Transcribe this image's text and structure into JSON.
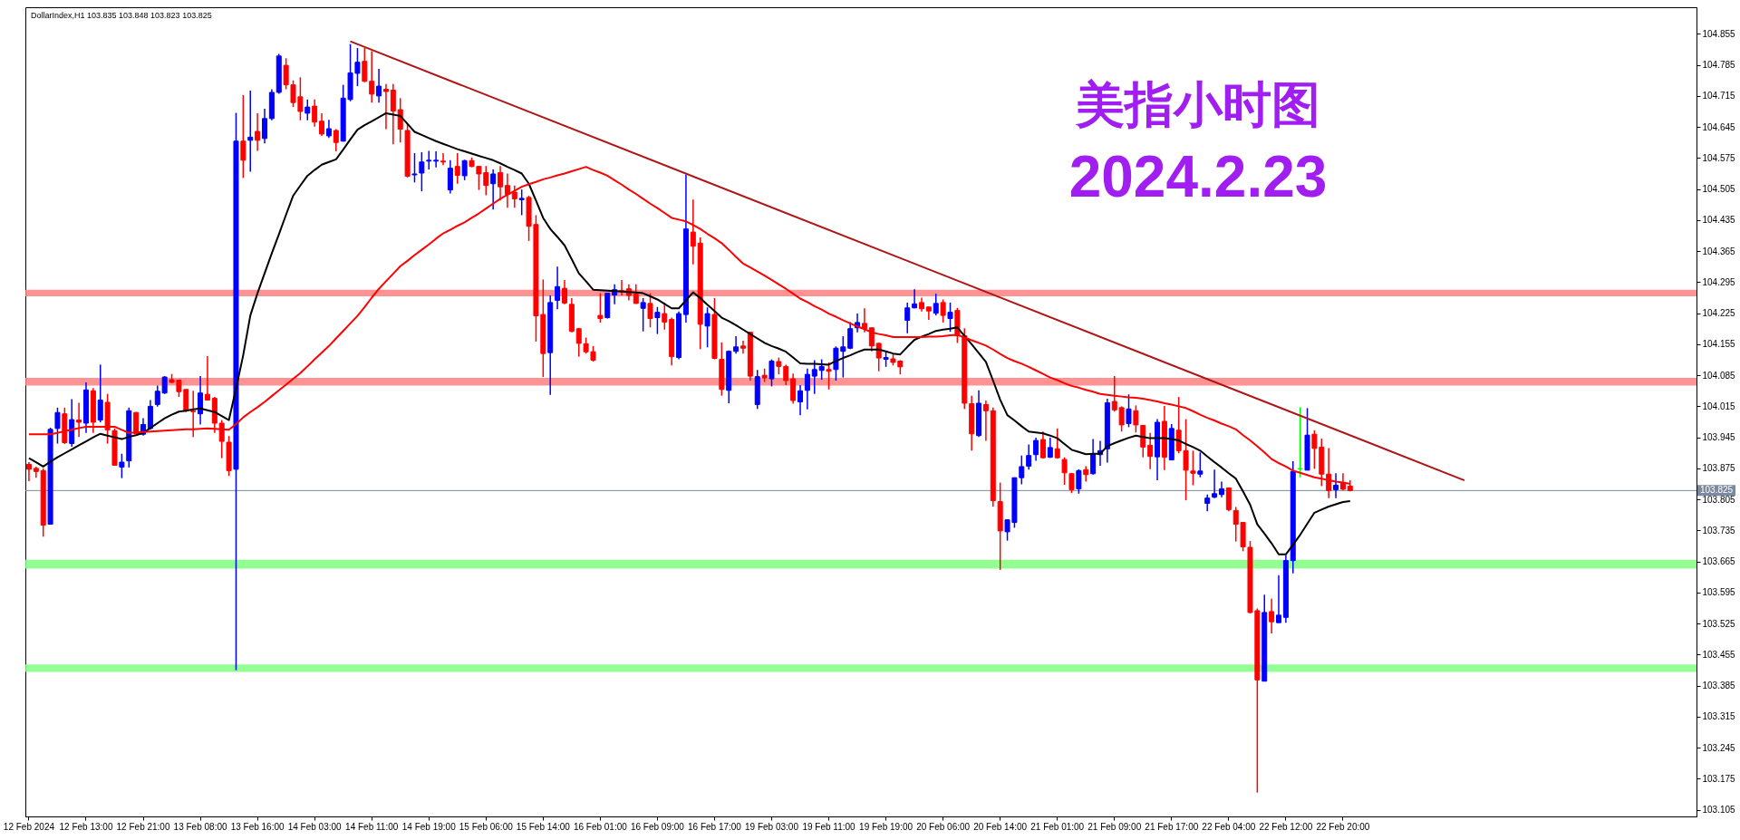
{
  "chart_data": {
    "type": "candlestick",
    "title": "美指小时图",
    "subtitle": "2024.2.23",
    "annotations": [
      "DollarIndex,H1  103.835 103.848 103.823 103.825"
    ],
    "categories": [
      "12 Feb 2024",
      null,
      null,
      null,
      null,
      null,
      null,
      null,
      "12 Feb 13:00",
      null,
      null,
      null,
      null,
      null,
      null,
      null,
      "12 Feb 21:00",
      null,
      null,
      null,
      null,
      null,
      null,
      null,
      "13 Feb 08:00",
      null,
      null,
      null,
      null,
      null,
      null,
      null,
      "13 Feb 16:00",
      null,
      null,
      null,
      null,
      null,
      null,
      null,
      "14 Feb 03:00",
      null,
      null,
      null,
      null,
      null,
      null,
      null,
      "14 Feb 11:00",
      null,
      null,
      null,
      null,
      null,
      null,
      null,
      "14 Feb 19:00",
      null,
      null,
      null,
      null,
      null,
      null,
      null,
      "15 Feb 06:00",
      null,
      null,
      null,
      null,
      null,
      null,
      null,
      "15 Feb 14:00",
      null,
      null,
      null,
      null,
      null,
      null,
      null,
      "16 Feb 01:00",
      null,
      null,
      null,
      null,
      null,
      null,
      null,
      "16 Feb 09:00",
      null,
      null,
      null,
      null,
      null,
      null,
      null,
      "16 Feb 17:00",
      null,
      null,
      null,
      null,
      null,
      null,
      null,
      "19 Feb 03:00",
      null,
      null,
      null,
      null,
      null,
      null,
      null,
      "19 Feb 11:00",
      null,
      null,
      null,
      null,
      null,
      null,
      null,
      "19 Feb 19:00",
      null,
      null,
      null,
      null,
      null,
      null,
      null,
      "20 Feb 06:00",
      null,
      null,
      null,
      null,
      null,
      null,
      null,
      "20 Feb 14:00",
      null,
      null,
      null,
      null,
      null,
      null,
      null,
      "21 Feb 01:00",
      null,
      null,
      null,
      null,
      null,
      null,
      null,
      "21 Feb 09:00",
      null,
      null,
      null,
      null,
      null,
      null,
      null,
      "21 Feb 17:00",
      null,
      null,
      null,
      null,
      null,
      null,
      null,
      "22 Feb 04:00",
      null,
      null,
      null,
      null,
      null,
      null,
      null,
      "22 Feb 12:00",
      null,
      null,
      null,
      null,
      null,
      null,
      null,
      "22 Feb 20:00",
      null,
      null,
      null,
      null,
      null,
      null,
      null,
      null,
      null,
      null,
      null,
      null,
      null,
      null,
      null,
      null,
      null,
      null,
      null,
      null,
      null,
      null,
      null,
      null,
      null,
      null,
      null,
      null,
      null,
      null,
      null,
      null,
      null,
      null,
      null,
      null,
      null,
      null,
      null,
      null,
      null,
      null,
      null,
      null,
      null,
      null,
      null,
      null,
      null
    ],
    "ohlc": [
      [
        103.884,
        103.889,
        103.846,
        103.873
      ],
      [
        103.875,
        103.879,
        103.854,
        103.868
      ],
      [
        103.87,
        103.875,
        103.721,
        103.747
      ],
      [
        103.749,
        103.967,
        103.749,
        103.963
      ],
      [
        103.965,
        104.012,
        103.931,
        104.001
      ],
      [
        103.998,
        104.012,
        103.93,
        103.933
      ],
      [
        103.931,
        104.031,
        103.924,
        103.985
      ],
      [
        103.984,
        104.023,
        103.946,
        103.979
      ],
      [
        103.977,
        104.069,
        103.955,
        104.052
      ],
      [
        104.05,
        104.056,
        103.955,
        103.979
      ],
      [
        103.984,
        104.109,
        103.979,
        104.029
      ],
      [
        104.024,
        104.043,
        103.931,
        103.962
      ],
      [
        103.96,
        103.965,
        103.882,
        103.882
      ],
      [
        103.878,
        103.908,
        103.853,
        103.889
      ],
      [
        103.892,
        104.012,
        103.877,
        104.005
      ],
      [
        104.001,
        104.002,
        103.952,
        103.953
      ],
      [
        103.952,
        103.988,
        103.949,
        103.974
      ],
      [
        103.965,
        104.029,
        103.962,
        104.015
      ],
      [
        104.019,
        104.062,
        104.014,
        104.049
      ],
      [
        104.045,
        104.083,
        104.043,
        104.081
      ],
      [
        104.075,
        104.088,
        104.067,
        104.069
      ],
      [
        104.074,
        104.074,
        104.036,
        104.048
      ],
      [
        104.053,
        104.053,
        104.002,
        104.005
      ],
      [
        104.005,
        104.05,
        103.946,
        104.003
      ],
      [
        103.998,
        104.083,
        103.974,
        104.045
      ],
      [
        104.042,
        104.128,
        104.028,
        104.029
      ],
      [
        104.033,
        104.036,
        103.955,
        103.977
      ],
      [
        103.977,
        103.984,
        103.898,
        103.936
      ],
      [
        103.934,
        103.948,
        103.858,
        103.87
      ],
      [
        103.873,
        104.677,
        103.42,
        104.613
      ],
      [
        104.613,
        104.717,
        104.53,
        104.57
      ],
      [
        104.615,
        104.727,
        104.544,
        104.622
      ],
      [
        104.635,
        104.676,
        104.591,
        104.615
      ],
      [
        104.619,
        104.686,
        104.608,
        104.664
      ],
      [
        104.664,
        104.73,
        104.66,
        104.723
      ],
      [
        104.723,
        104.81,
        104.72,
        104.805
      ],
      [
        104.784,
        104.8,
        104.73,
        104.74
      ],
      [
        104.74,
        104.75,
        104.69,
        104.7
      ],
      [
        104.713,
        104.757,
        104.66,
        104.68
      ],
      [
        104.676,
        104.707,
        104.66,
        104.69
      ],
      [
        104.692,
        104.707,
        104.646,
        104.656
      ],
      [
        104.658,
        104.676,
        104.625,
        104.629
      ],
      [
        104.625,
        104.661,
        104.62,
        104.641
      ],
      [
        104.637,
        104.64,
        104.59,
        104.61
      ],
      [
        104.613,
        104.74,
        104.612,
        104.71
      ],
      [
        104.707,
        104.832,
        104.703,
        104.767
      ],
      [
        104.766,
        104.823,
        104.737,
        104.791
      ],
      [
        104.793,
        104.823,
        104.746,
        104.748
      ],
      [
        104.748,
        104.816,
        104.7,
        104.719
      ],
      [
        104.715,
        104.776,
        104.7,
        104.737
      ],
      [
        104.73,
        104.742,
        104.64,
        104.725
      ],
      [
        104.728,
        104.742,
        104.606,
        104.681
      ],
      [
        104.684,
        104.71,
        104.61,
        104.64
      ],
      [
        104.637,
        104.652,
        104.531,
        104.534
      ],
      [
        104.537,
        104.586,
        104.52,
        104.539
      ],
      [
        104.541,
        104.588,
        104.5,
        104.566
      ],
      [
        104.568,
        104.591,
        104.549,
        104.57
      ],
      [
        104.568,
        104.59,
        104.554,
        104.57
      ],
      [
        104.568,
        104.586,
        104.559,
        104.566
      ],
      [
        104.503,
        104.57,
        104.495,
        104.552
      ],
      [
        104.556,
        104.586,
        104.517,
        104.536
      ],
      [
        104.535,
        104.571,
        104.525,
        104.569
      ],
      [
        104.569,
        104.576,
        104.554,
        104.556
      ],
      [
        104.556,
        104.557,
        104.503,
        104.539
      ],
      [
        104.542,
        104.557,
        104.491,
        104.513
      ],
      [
        104.517,
        104.549,
        104.459,
        104.539
      ],
      [
        104.542,
        104.557,
        104.479,
        104.51
      ],
      [
        104.513,
        104.54,
        104.463,
        104.493
      ],
      [
        104.498,
        104.513,
        104.463,
        104.483
      ],
      [
        104.481,
        104.504,
        104.446,
        104.484
      ],
      [
        104.486,
        104.49,
        104.388,
        104.421
      ],
      [
        104.425,
        104.446,
        104.161,
        104.219
      ],
      [
        104.222,
        104.301,
        104.081,
        104.134
      ],
      [
        104.136,
        104.265,
        104.041,
        104.249
      ],
      [
        104.254,
        104.33,
        104.234,
        104.285
      ],
      [
        104.281,
        104.3,
        104.245,
        104.248
      ],
      [
        104.245,
        104.259,
        104.182,
        104.184
      ],
      [
        104.19,
        104.192,
        104.127,
        104.157
      ],
      [
        104.156,
        104.17,
        104.134,
        104.138
      ],
      [
        104.138,
        104.151,
        104.116,
        104.119
      ],
      [
        104.22,
        104.27,
        104.204,
        104.213
      ],
      [
        104.215,
        104.27,
        104.213,
        104.27
      ],
      [
        104.266,
        104.29,
        104.245,
        104.278
      ],
      [
        104.276,
        104.3,
        104.265,
        104.274
      ],
      [
        104.28,
        104.29,
        104.254,
        104.265
      ],
      [
        104.268,
        104.29,
        104.246,
        104.247
      ],
      [
        104.236,
        104.259,
        104.184,
        104.249
      ],
      [
        104.247,
        104.27,
        104.193,
        104.213
      ],
      [
        104.215,
        104.239,
        104.178,
        104.227
      ],
      [
        104.224,
        104.249,
        104.188,
        104.205
      ],
      [
        104.211,
        104.215,
        104.107,
        104.127
      ],
      [
        104.125,
        104.229,
        104.121,
        104.224
      ],
      [
        104.222,
        104.538,
        104.204,
        104.415
      ],
      [
        104.408,
        104.481,
        104.335,
        104.376
      ],
      [
        104.383,
        104.396,
        104.144,
        104.2
      ],
      [
        104.196,
        104.238,
        104.148,
        104.224
      ],
      [
        104.222,
        104.259,
        104.121,
        104.123
      ],
      [
        104.121,
        104.159,
        104.039,
        104.053
      ],
      [
        104.051,
        104.141,
        104.022,
        104.139
      ],
      [
        104.139,
        104.173,
        104.134,
        104.149
      ],
      [
        104.151,
        104.163,
        104.134,
        104.146
      ],
      [
        104.182,
        104.182,
        104.073,
        104.083
      ],
      [
        104.019,
        104.097,
        104.009,
        104.082
      ],
      [
        104.085,
        104.1,
        104.07,
        104.079
      ],
      [
        104.077,
        104.121,
        104.06,
        104.117
      ],
      [
        104.116,
        104.125,
        104.087,
        104.105
      ],
      [
        104.105,
        104.109,
        104.063,
        104.073
      ],
      [
        104.077,
        104.089,
        104.021,
        104.028
      ],
      [
        104.025,
        104.063,
        103.995,
        104.05
      ],
      [
        104.051,
        104.1,
        104.008,
        104.087
      ],
      [
        104.083,
        104.119,
        104.043,
        104.098
      ],
      [
        104.096,
        104.121,
        104.075,
        104.105
      ],
      [
        104.098,
        104.114,
        104.053,
        104.094
      ],
      [
        104.098,
        104.15,
        104.073,
        104.146
      ],
      [
        104.139,
        104.173,
        104.08,
        104.149
      ],
      [
        104.146,
        104.205,
        104.144,
        104.19
      ],
      [
        104.192,
        104.224,
        104.182,
        104.204
      ],
      [
        104.202,
        104.236,
        104.182,
        104.19
      ],
      [
        104.192,
        104.193,
        104.139,
        104.151
      ],
      [
        104.157,
        104.158,
        104.094,
        104.124
      ],
      [
        104.121,
        104.138,
        104.104,
        104.125
      ],
      [
        104.122,
        104.132,
        104.107,
        104.114
      ],
      [
        104.117,
        104.119,
        104.087,
        104.104
      ],
      [
        104.209,
        104.249,
        104.18,
        104.237
      ],
      [
        104.237,
        104.279,
        104.236,
        104.246
      ],
      [
        104.249,
        104.26,
        104.229,
        104.235
      ],
      [
        104.239,
        104.239,
        104.21,
        104.23
      ],
      [
        104.225,
        104.269,
        104.22,
        104.247
      ],
      [
        104.249,
        104.256,
        104.204,
        104.22
      ],
      [
        104.213,
        104.249,
        104.183,
        104.227
      ],
      [
        104.231,
        104.237,
        104.158,
        104.174
      ],
      [
        104.174,
        104.191,
        104.009,
        104.022
      ],
      [
        104.021,
        104.039,
        103.915,
        103.953
      ],
      [
        103.949,
        104.051,
        103.946,
        104.022
      ],
      [
        104.019,
        104.028,
        103.937,
        104.005
      ],
      [
        104.005,
        104.012,
        103.789,
        103.802
      ],
      [
        103.8,
        103.843,
        103.646,
        103.734
      ],
      [
        103.732,
        103.759,
        103.712,
        103.759
      ],
      [
        103.753,
        103.854,
        103.741,
        103.854
      ],
      [
        103.854,
        103.904,
        103.839,
        103.879
      ],
      [
        103.88,
        103.929,
        103.872,
        103.904
      ],
      [
        103.906,
        103.944,
        103.892,
        103.938
      ],
      [
        103.94,
        103.958,
        103.897,
        103.899
      ],
      [
        103.9,
        103.944,
        103.899,
        103.922
      ],
      [
        103.919,
        103.965,
        103.897,
        103.899
      ],
      [
        103.895,
        103.9,
        103.838,
        103.865
      ],
      [
        103.863,
        103.865,
        103.819,
        103.827
      ],
      [
        103.829,
        103.873,
        103.818,
        103.87
      ],
      [
        103.872,
        103.88,
        103.845,
        103.861
      ],
      [
        103.863,
        103.941,
        103.861,
        103.908
      ],
      [
        103.906,
        103.937,
        103.881,
        103.915
      ],
      [
        103.919,
        104.032,
        103.888,
        104.023
      ],
      [
        104.026,
        104.083,
        104.003,
        104.007
      ],
      [
        104.012,
        104.015,
        103.958,
        103.973
      ],
      [
        103.976,
        104.042,
        103.968,
        104.009
      ],
      [
        104.005,
        104.017,
        103.956,
        103.973
      ],
      [
        103.972,
        103.972,
        103.9,
        103.923
      ],
      [
        103.927,
        103.955,
        103.873,
        103.902
      ],
      [
        103.901,
        103.986,
        103.848,
        103.979
      ],
      [
        103.981,
        104.016,
        103.871,
        103.9
      ],
      [
        103.894,
        103.975,
        103.893,
        103.965
      ],
      [
        103.961,
        104.036,
        103.909,
        103.915
      ],
      [
        103.915,
        103.986,
        103.803,
        103.871
      ],
      [
        103.869,
        103.915,
        103.837,
        103.864
      ],
      [
        103.862,
        103.911,
        103.855,
        103.869
      ],
      [
        103.796,
        103.816,
        103.778,
        103.808
      ],
      [
        103.81,
        103.872,
        103.808,
        103.818
      ],
      [
        103.816,
        103.845,
        103.81,
        103.829
      ],
      [
        103.831,
        103.832,
        103.778,
        103.782
      ],
      [
        103.78,
        103.788,
        103.71,
        103.749
      ],
      [
        103.753,
        103.753,
        103.688,
        103.698
      ],
      [
        103.697,
        103.711,
        103.548,
        103.55
      ],
      [
        103.554,
        103.559,
        103.144,
        103.398
      ],
      [
        103.395,
        103.59,
        103.395,
        103.55
      ],
      [
        103.552,
        103.581,
        103.503,
        103.529
      ],
      [
        103.527,
        103.634,
        103.527,
        103.544
      ],
      [
        103.539,
        103.679,
        103.527,
        103.667
      ],
      [
        103.667,
        103.891,
        103.638,
        103.868
      ],
      [
        103.874,
        104.013,
        103.855,
        103.874
      ],
      [
        103.871,
        104.011,
        103.871,
        103.95
      ],
      [
        103.952,
        103.961,
        103.874,
        103.92
      ],
      [
        103.923,
        103.942,
        103.835,
        103.862
      ],
      [
        103.862,
        103.921,
        103.808,
        103.825
      ],
      [
        103.827,
        103.864,
        103.808,
        103.837
      ],
      [
        103.841,
        103.864,
        103.825,
        103.828
      ],
      [
        103.835,
        103.848,
        103.823,
        103.825
      ],
      null,
      null,
      null,
      null,
      null,
      null,
      null,
      null,
      null,
      null,
      null,
      null,
      null,
      null,
      null,
      null,
      null,
      null,
      null,
      null,
      null,
      null,
      null,
      null,
      null,
      null,
      null,
      null,
      null,
      null,
      null,
      null,
      null,
      null,
      null,
      null,
      null,
      null,
      null,
      null,
      null,
      null,
      null,
      null,
      null,
      null,
      null,
      null
    ],
    "colors": [
      "#ff0000",
      "#ff0000",
      "#ff0000",
      "#0000ff",
      "#0000ff",
      "#ff0000",
      "#0000ff",
      "#ff0000",
      "#0000ff",
      "#ff0000",
      "#0000ff",
      "#ff0000",
      "#ff0000",
      "#0000ff",
      "#0000ff",
      "#ff0000",
      "#0000ff",
      "#0000ff",
      "#0000ff",
      "#0000ff",
      "#ff0000",
      "#ff0000",
      "#ff0000",
      "#ff0000",
      "#0000ff",
      "#ff0000",
      "#ff0000",
      "#ff0000",
      "#ff0000",
      "#0000ff",
      "#ff0000",
      "#0000ff",
      "#ff0000",
      "#0000ff",
      "#0000ff",
      "#0000ff",
      "#ff0000",
      "#ff0000",
      "#ff0000",
      "#0000ff",
      "#ff0000",
      "#ff0000",
      "#0000ff",
      "#ff0000",
      "#0000ff",
      "#0000ff",
      "#0000ff",
      "#ff0000",
      "#ff0000",
      "#0000ff",
      "#ff0000",
      "#ff0000",
      "#ff0000",
      "#ff0000",
      "#0000ff",
      "#0000ff",
      "#0000ff",
      "#0000ff",
      "#ff0000",
      "#0000ff",
      "#ff0000",
      "#0000ff",
      "#ff0000",
      "#ff0000",
      "#ff0000",
      "#0000ff",
      "#ff0000",
      "#ff0000",
      "#ff0000",
      "#0000ff",
      "#ff0000",
      "#ff0000",
      "#ff0000",
      "#0000ff",
      "#0000ff",
      "#ff0000",
      "#ff0000",
      "#ff0000",
      "#ff0000",
      "#ff0000",
      "#ff0000",
      "#0000ff",
      "#0000ff",
      "#ff0000",
      "#ff0000",
      "#ff0000",
      "#0000ff",
      "#ff0000",
      "#0000ff",
      "#ff0000",
      "#ff0000",
      "#0000ff",
      "#0000ff",
      "#ff0000",
      "#ff0000",
      "#0000ff",
      "#ff0000",
      "#ff0000",
      "#0000ff",
      "#0000ff",
      "#ff0000",
      "#ff0000",
      "#0000ff",
      "#ff0000",
      "#0000ff",
      "#ff0000",
      "#ff0000",
      "#ff0000",
      "#0000ff",
      "#0000ff",
      "#0000ff",
      "#0000ff",
      "#ff0000",
      "#0000ff",
      "#0000ff",
      "#0000ff",
      "#0000ff",
      "#ff0000",
      "#ff0000",
      "#ff0000",
      "#0000ff",
      "#ff0000",
      "#ff0000",
      "#0000ff",
      "#0000ff",
      "#ff0000",
      "#ff0000",
      "#0000ff",
      "#ff0000",
      "#0000ff",
      "#ff0000",
      "#ff0000",
      "#ff0000",
      "#0000ff",
      "#ff0000",
      "#ff0000",
      "#ff0000",
      "#0000ff",
      "#0000ff",
      "#0000ff",
      "#0000ff",
      "#0000ff",
      "#ff0000",
      "#0000ff",
      "#ff0000",
      "#ff0000",
      "#ff0000",
      "#0000ff",
      "#ff0000",
      "#0000ff",
      "#0000ff",
      "#0000ff",
      "#ff0000",
      "#ff0000",
      "#0000ff",
      "#ff0000",
      "#ff0000",
      "#ff0000",
      "#0000ff",
      "#ff0000",
      "#0000ff",
      "#ff0000",
      "#ff0000",
      "#ff0000",
      "#0000ff",
      "#0000ff",
      "#0000ff",
      "#0000ff",
      "#ff0000",
      "#ff0000",
      "#ff0000",
      "#ff0000",
      "#ff0000",
      "#0000ff",
      "#ff0000",
      "#0000ff",
      "#0000ff",
      "#0000ff",
      "#00ff00",
      "#0000ff",
      "#ff0000",
      "#ff0000",
      "#ff0000",
      "#0000ff",
      "#ff0000",
      "#ff0000",
      null,
      null,
      null,
      null,
      null,
      null,
      null,
      null,
      null,
      null,
      null,
      null,
      null,
      null,
      null,
      null,
      null,
      null,
      null,
      null,
      null,
      null,
      null,
      null,
      null,
      null,
      null,
      null,
      null,
      null,
      null,
      null,
      null,
      null,
      null,
      null,
      null,
      null,
      null,
      null,
      null,
      null,
      null,
      null,
      null,
      null,
      null,
      null
    ],
    "series": [
      {
        "type": "line",
        "color": "#000000",
        "values": [
          103.898,
          103.889,
          103.879,
          103.89,
          103.9,
          103.909,
          103.918,
          103.927,
          103.936,
          103.945,
          103.953,
          103.949,
          103.945,
          103.941,
          103.946,
          103.95,
          103.955,
          103.966,
          103.977,
          103.988,
          103.996,
          104.003,
          104.005,
          104.008,
          104.01,
          104.006,
          104.002,
          103.993,
          103.984,
          104.055,
          104.13,
          104.22,
          104.27,
          104.315,
          104.36,
          104.403,
          104.447,
          104.49,
          104.513,
          104.535,
          104.548,
          104.56,
          104.566,
          104.572,
          104.594,
          104.617,
          104.639,
          104.649,
          104.658,
          104.667,
          104.676,
          104.673,
          104.67,
          104.652,
          104.634,
          104.627,
          104.62,
          104.613,
          104.607,
          104.601,
          104.595,
          104.59,
          104.585,
          104.58,
          104.575,
          104.57,
          104.563,
          104.555,
          104.548,
          104.54,
          104.517,
          104.479,
          104.44,
          104.415,
          104.397,
          104.378,
          104.347,
          104.315,
          104.297,
          104.278,
          104.277,
          104.276,
          104.275,
          104.274,
          104.273,
          104.272,
          104.27,
          104.263,
          104.256,
          104.246,
          104.236,
          104.236,
          104.254,
          104.272,
          104.259,
          104.244,
          104.23,
          104.215,
          104.207,
          104.198,
          104.188,
          104.178,
          104.168,
          104.158,
          104.151,
          104.145,
          104.138,
          104.125,
          104.112,
          104.111,
          104.111,
          104.11,
          104.109,
          104.117,
          104.124,
          104.13,
          104.137,
          104.143,
          104.143,
          104.143,
          104.139,
          104.134,
          104.132,
          104.149,
          104.165,
          104.172,
          104.178,
          104.185,
          104.188,
          104.19,
          104.193,
          104.174,
          104.155,
          104.135,
          104.115,
          104.073,
          104.03,
          103.995,
          103.983,
          103.97,
          103.958,
          103.956,
          103.954,
          103.949,
          103.943,
          103.93,
          103.917,
          103.912,
          103.907,
          103.908,
          103.908,
          103.925,
          103.932,
          103.938,
          103.944,
          103.949,
          103.946,
          103.943,
          103.943,
          103.943,
          103.941,
          103.938,
          103.93,
          103.923,
          103.915,
          103.902,
          103.889,
          103.877,
          103.864,
          103.852,
          103.823,
          103.793,
          103.749,
          103.728,
          103.706,
          103.681,
          103.681,
          103.703,
          103.725,
          103.75,
          103.775,
          103.782,
          103.789,
          103.794,
          103.799,
          103.801,
          null,
          null,
          null,
          null,
          null,
          null,
          null,
          null,
          null,
          null,
          null,
          null,
          null,
          null,
          null,
          null,
          null,
          null,
          null,
          null,
          null,
          null,
          null,
          null,
          null,
          null,
          null,
          null,
          null,
          null,
          null,
          null,
          null,
          null,
          null,
          null,
          null,
          null,
          null,
          null,
          null,
          null,
          null,
          null,
          null,
          null,
          null,
          null
        ]
      },
      {
        "type": "line",
        "color": "#ff0000",
        "values": [
          103.952,
          103.952,
          103.952,
          103.952,
          103.955,
          103.959,
          103.962,
          103.966,
          103.969,
          103.969,
          103.969,
          103.969,
          103.969,
          103.962,
          103.955,
          103.956,
          103.957,
          103.958,
          103.959,
          103.96,
          103.961,
          103.962,
          103.963,
          103.963,
          103.964,
          103.965,
          103.964,
          103.963,
          103.962,
          103.975,
          103.99,
          104.002,
          104.013,
          104.025,
          104.038,
          104.051,
          104.064,
          104.077,
          104.09,
          104.105,
          104.121,
          104.136,
          104.151,
          104.168,
          104.185,
          104.202,
          104.219,
          104.239,
          104.26,
          104.28,
          104.297,
          104.314,
          104.331,
          104.343,
          104.356,
          104.368,
          104.38,
          104.393,
          104.405,
          104.413,
          104.422,
          104.43,
          104.44,
          104.45,
          104.461,
          104.472,
          104.483,
          104.492,
          104.501,
          104.51,
          104.516,
          104.521,
          104.527,
          104.531,
          104.536,
          104.54,
          104.545,
          104.55,
          104.555,
          104.548,
          104.542,
          104.535,
          104.525,
          104.515,
          104.504,
          104.494,
          104.483,
          104.472,
          104.462,
          104.451,
          104.44,
          104.436,
          104.432,
          104.424,
          104.415,
          104.404,
          104.394,
          104.383,
          104.368,
          104.352,
          104.337,
          104.328,
          104.319,
          104.31,
          104.3,
          104.29,
          104.28,
          104.269,
          104.258,
          104.25,
          104.241,
          104.233,
          104.224,
          104.217,
          104.209,
          104.202,
          104.195,
          104.189,
          104.182,
          104.178,
          104.175,
          104.171,
          104.171,
          104.171,
          104.171,
          104.171,
          104.172,
          104.172,
          104.173,
          104.175,
          104.176,
          104.17,
          104.164,
          104.158,
          104.152,
          104.143,
          104.133,
          104.124,
          104.117,
          104.111,
          104.104,
          104.096,
          104.088,
          104.08,
          104.074,
          104.067,
          104.061,
          104.057,
          104.052,
          104.048,
          104.043,
          104.041,
          104.039,
          104.037,
          104.035,
          104.034,
          104.032,
          104.029,
          104.026,
          104.022,
          104.019,
          104.015,
          104.011,
          104.004,
          103.996,
          103.989,
          103.983,
          103.976,
          103.97,
          103.963,
          103.95,
          103.938,
          103.925,
          103.911,
          103.896,
          103.887,
          103.879,
          103.87,
          103.865,
          103.86,
          103.855,
          103.852,
          103.848,
          103.845,
          103.843,
          103.84,
          null,
          null,
          null,
          null,
          null,
          null,
          null,
          null,
          null,
          null,
          null,
          null,
          null,
          null,
          null,
          null,
          null,
          null,
          null,
          null,
          null,
          null,
          null,
          null,
          null,
          null,
          null,
          null,
          null,
          null,
          null,
          null,
          null,
          null,
          null,
          null,
          null,
          null,
          null,
          null,
          null,
          null,
          null,
          null,
          null,
          null,
          null,
          null
        ]
      },
      {
        "type": "line",
        "color": "#b01515",
        "values": [
          null,
          null,
          null,
          null,
          null,
          null,
          null,
          null,
          null,
          null,
          null,
          null,
          null,
          null,
          null,
          null,
          null,
          null,
          null,
          null,
          null,
          null,
          null,
          null,
          null,
          null,
          null,
          null,
          null,
          null,
          null,
          null,
          null,
          null,
          null,
          null,
          null,
          null,
          null,
          null,
          null,
          null,
          null,
          null,
          null,
          104.838,
          null,
          null,
          null,
          null,
          null,
          null,
          null,
          null,
          null,
          null,
          null,
          null,
          null,
          null,
          null,
          null,
          null,
          null,
          null,
          null,
          null,
          null,
          null,
          null,
          null,
          null,
          null,
          null,
          null,
          null,
          null,
          null,
          null,
          null,
          null,
          null,
          null,
          null,
          null,
          null,
          null,
          null,
          null,
          null,
          null,
          null,
          null,
          null,
          null,
          null,
          null,
          null,
          null,
          null,
          null,
          null,
          null,
          null,
          null,
          null,
          null,
          null,
          null,
          null,
          null,
          null,
          null,
          null,
          null,
          null,
          null,
          null,
          null,
          null,
          null,
          null,
          null,
          null,
          null,
          null,
          null,
          null,
          null,
          null,
          null,
          null,
          null,
          null,
          null,
          null,
          null,
          null,
          null,
          null,
          null,
          null,
          null,
          null,
          null,
          null,
          null,
          null,
          null,
          null,
          null,
          null,
          null,
          null,
          null,
          null,
          null,
          null,
          null,
          null,
          null,
          null,
          null,
          null,
          null,
          null,
          null,
          null,
          null,
          null,
          null,
          null,
          null,
          null,
          null,
          null,
          null,
          null,
          null,
          null,
          null,
          null,
          null,
          null,
          null,
          null,
          null,
          null,
          null,
          null,
          null,
          null,
          null,
          null,
          null,
          null,
          null,
          null,
          null,
          null,
          null,
          103.848,
          null,
          null,
          null,
          null,
          null,
          null,
          null,
          null,
          null,
          null,
          null,
          null,
          null,
          null,
          null,
          null,
          null,
          null,
          null,
          null,
          null,
          null,
          null,
          null,
          null,
          null,
          null,
          null,
          null,
          null,
          null,
          null
        ]
      }
    ],
    "ylim": [
      103.09,
      104.915
    ],
    "yticks": [
      103.105,
      103.175,
      103.245,
      103.315,
      103.385,
      103.455,
      103.525,
      103.595,
      103.665,
      103.735,
      103.805,
      103.875,
      103.945,
      104.015,
      104.085,
      104.155,
      104.225,
      104.295,
      104.365,
      104.435,
      104.505,
      104.575,
      104.645,
      104.715,
      104.785,
      104.855
    ],
    "ref_lines": [
      {
        "axis": "y",
        "value": 103.825,
        "label": "103.825",
        "color": "#7b8aa0"
      }
    ],
    "bands": [
      {
        "axis": "y",
        "from": 104.263,
        "to": 104.278,
        "color": "#ff8080"
      },
      {
        "axis": "y",
        "from": 104.062,
        "to": 104.079,
        "color": "#ff8080"
      },
      {
        "axis": "y",
        "from": 103.649,
        "to": 103.669,
        "color": "#80ff80"
      },
      {
        "axis": "y",
        "from": 103.416,
        "to": 103.433,
        "color": "#80ff80"
      }
    ]
  }
}
